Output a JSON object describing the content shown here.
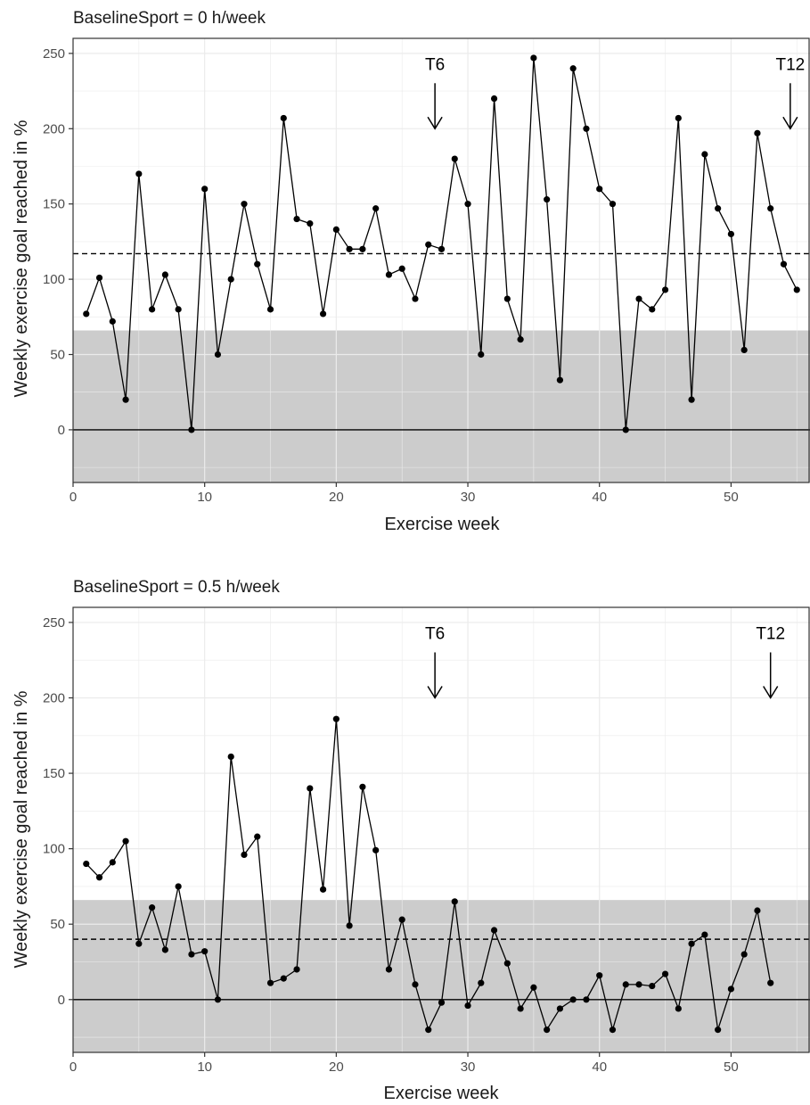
{
  "chart_data": [
    {
      "type": "line",
      "title": "BaselineSport = 0 h/week",
      "xlabel": "Exercise week",
      "ylabel": "Weekly exercise goal reached in %",
      "xlim": [
        0,
        56
      ],
      "ylim": [
        -35,
        260
      ],
      "x_ticks": [
        0,
        10,
        20,
        30,
        40,
        50
      ],
      "y_ticks": [
        0,
        50,
        100,
        150,
        200,
        250
      ],
      "grid": true,
      "shaded_band": [
        -35,
        66
      ],
      "reference_hline": 0,
      "dashed_hline": 117,
      "annotations": [
        {
          "label": "T6",
          "x": 27.5,
          "y": 200
        },
        {
          "label": "T12",
          "x": 54.5,
          "y": 200
        }
      ],
      "series": [
        {
          "x": [
            1,
            2,
            3,
            4,
            5,
            6,
            7,
            8,
            9,
            10,
            11,
            12,
            13,
            14,
            15,
            16,
            17,
            18,
            19,
            20,
            21,
            22,
            23,
            24,
            25,
            26,
            27,
            28,
            29,
            30,
            31,
            32,
            33,
            34,
            35,
            36,
            37,
            38,
            39,
            40,
            41,
            42,
            43,
            44,
            45,
            46,
            47,
            48,
            49,
            50,
            51,
            52,
            53,
            54,
            55
          ],
          "values": [
            77,
            101,
            72,
            20,
            170,
            80,
            103,
            80,
            0,
            160,
            50,
            100,
            150,
            110,
            80,
            207,
            140,
            137,
            77,
            133,
            120,
            120,
            147,
            103,
            107,
            87,
            123,
            120,
            180,
            150,
            50,
            220,
            87,
            60,
            247,
            153,
            33,
            240,
            200,
            160,
            150,
            0,
            87,
            80,
            93,
            207,
            20,
            183,
            147,
            130,
            53,
            197,
            147,
            110,
            93
          ]
        }
      ]
    },
    {
      "type": "line",
      "title": "BaselineSport = 0.5 h/week",
      "xlabel": "Exercise week",
      "ylabel": "Weekly exercise goal reached in %",
      "xlim": [
        0,
        56
      ],
      "ylim": [
        -35,
        260
      ],
      "x_ticks": [
        0,
        10,
        20,
        30,
        40,
        50
      ],
      "y_ticks": [
        0,
        50,
        100,
        150,
        200,
        250
      ],
      "grid": true,
      "shaded_band": [
        -35,
        66
      ],
      "reference_hline": 0,
      "dashed_hline": 40,
      "annotations": [
        {
          "label": "T6",
          "x": 27.5,
          "y": 200
        },
        {
          "label": "T12",
          "x": 53,
          "y": 200
        }
      ],
      "series": [
        {
          "x": [
            1,
            2,
            3,
            4,
            5,
            6,
            7,
            8,
            9,
            10,
            11,
            12,
            13,
            14,
            15,
            16,
            17,
            18,
            19,
            20,
            21,
            22,
            23,
            24,
            25,
            26,
            27,
            28,
            29,
            30,
            31,
            32,
            33,
            34,
            35,
            36,
            37,
            38,
            39,
            40,
            41,
            42,
            43,
            44,
            45,
            46,
            47,
            48,
            49,
            50,
            51,
            52,
            53
          ],
          "values": [
            90,
            81,
            91,
            105,
            37,
            61,
            33,
            75,
            30,
            32,
            0,
            161,
            96,
            108,
            11,
            14,
            20,
            140,
            73,
            186,
            49,
            141,
            99,
            20,
            53,
            10,
            -20,
            -2,
            65,
            -4,
            11,
            46,
            24,
            -6,
            8,
            -20,
            -6,
            0,
            0,
            16,
            -20,
            10,
            10,
            9,
            17,
            -6,
            37,
            43,
            -20,
            7,
            30,
            59,
            11
          ]
        }
      ]
    }
  ]
}
